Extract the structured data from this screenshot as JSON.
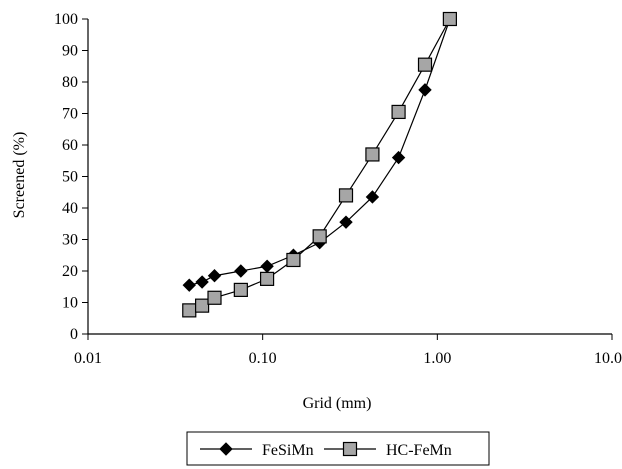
{
  "chart_data": {
    "type": "scatter",
    "xlabel": "Grid (mm)",
    "ylabel": "Screened (%)",
    "x_scale": "log",
    "xlim": [
      0.01,
      10
    ],
    "ylim": [
      0,
      100
    ],
    "x_ticks": [
      0.01,
      0.1,
      1,
      10
    ],
    "x_tick_labels": [
      "0.01",
      "0.10",
      "1.00",
      "10.00"
    ],
    "y_ticks": [
      0,
      10,
      20,
      30,
      40,
      50,
      60,
      70,
      80,
      90,
      100
    ],
    "y_tick_labels": [
      "0",
      "10",
      "20",
      "30",
      "40",
      "50",
      "60",
      "70",
      "80",
      "90",
      "100"
    ],
    "grid": false,
    "legend_position": "bottom-center",
    "series": [
      {
        "name": "FeSiMn",
        "marker": "diamond",
        "marker_color": "#000000",
        "line_color": "#000000",
        "x": [
          0.038,
          0.045,
          0.053,
          0.075,
          0.106,
          0.15,
          0.212,
          0.3,
          0.425,
          0.6,
          0.85,
          1.18
        ],
        "y": [
          15.5,
          16.5,
          18.5,
          20,
          21.5,
          25,
          29,
          35.5,
          43.5,
          56,
          77.5,
          100
        ]
      },
      {
        "name": "HC-FeMn",
        "marker": "square",
        "marker_color": "#a6a6a6",
        "line_color": "#000000",
        "x": [
          0.038,
          0.045,
          0.053,
          0.075,
          0.106,
          0.15,
          0.212,
          0.3,
          0.425,
          0.6,
          0.85,
          1.18
        ],
        "y": [
          7.5,
          9,
          11.5,
          14,
          17.5,
          23.5,
          31,
          44,
          57,
          70.5,
          85.5,
          100
        ]
      }
    ]
  }
}
